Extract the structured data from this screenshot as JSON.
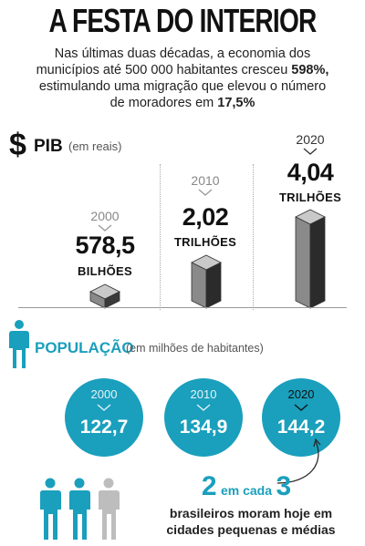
{
  "title": "A FESTA DO INTERIOR",
  "intro": {
    "line1": "Nas últimas duas décadas, a economia dos",
    "line2_pre": "municípios até 500 000 habitantes cresceu ",
    "line2_bold": "598%,",
    "line3": "estimulando uma migração que elevou o número",
    "line4_pre": "de moradores em ",
    "line4_bold": "17,5%"
  },
  "pib": {
    "icon": "dollar-icon",
    "symbol": "$",
    "label": "PIB",
    "unit": "(em reais)",
    "items": [
      {
        "year": "2000",
        "value": "578,5",
        "unit": "BILHÕES"
      },
      {
        "year": "2010",
        "value": "2,02",
        "unit": "TRILHÕES"
      },
      {
        "year": "2020",
        "value": "4,04",
        "unit": "TRILHÕES"
      }
    ]
  },
  "population": {
    "icon": "person-icon",
    "label": "POPULAÇÃO",
    "unit": "(em milhões de habitantes)",
    "items": [
      {
        "year": "2000",
        "value": "122,7"
      },
      {
        "year": "2010",
        "value": "134,9"
      },
      {
        "year": "2020",
        "value": "144,2"
      }
    ]
  },
  "ratio": {
    "num": "2",
    "mid": "em cada",
    "den": "3",
    "line1": "brasileiros moram hoje em",
    "line2": "cidades pequenas e médias"
  },
  "colors": {
    "accent": "#1a9fbd",
    "person_gray": "#bdbdbd",
    "bar_dark": "#2b2b2b",
    "bar_light": "#9a9a9a"
  }
}
